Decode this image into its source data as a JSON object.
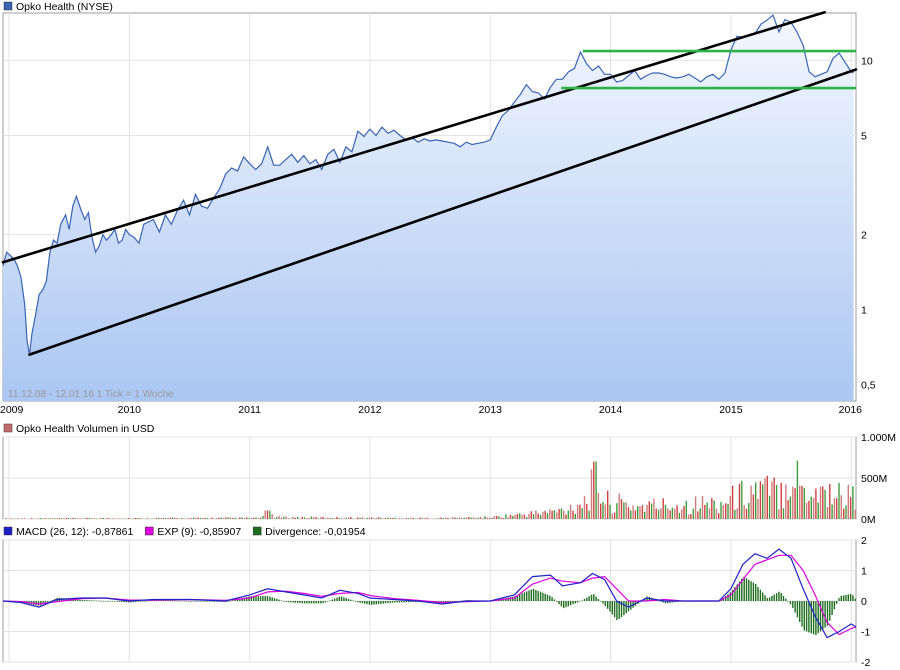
{
  "chart_data": [
    {
      "type": "area",
      "legend": "Opko Health (NYSE)",
      "legend_color": "#3a64b4",
      "note": "11.12.08 - 12.01.16   1 Tick = 1 Woche",
      "scale": "log",
      "ylim": [
        0.43,
        15.5
      ],
      "xlim": [
        2008.95,
        2016.04
      ],
      "yticks": [
        {
          "v": 0.5,
          "label": "0,5"
        },
        {
          "v": 1,
          "label": "1"
        },
        {
          "v": 2,
          "label": "2"
        },
        {
          "v": 5,
          "label": "5"
        },
        {
          "v": 10,
          "label": "10"
        }
      ],
      "xticks": [
        {
          "v": 2009,
          "label": "2009"
        },
        {
          "v": 2010,
          "label": "2010"
        },
        {
          "v": 2011,
          "label": "2011"
        },
        {
          "v": 2012,
          "label": "2012"
        },
        {
          "v": 2013,
          "label": "2013"
        },
        {
          "v": 2014,
          "label": "2014"
        },
        {
          "v": 2015,
          "label": "2015"
        },
        {
          "v": 2016,
          "label": "2016"
        }
      ],
      "series": [
        {
          "x": [
            2008.95,
            2008.98,
            2009.01,
            2009.04,
            2009.07,
            2009.1,
            2009.13,
            2009.15,
            2009.17,
            2009.19,
            2009.22,
            2009.25,
            2009.28,
            2009.31,
            2009.34,
            2009.37,
            2009.4,
            2009.43,
            2009.47,
            2009.5,
            2009.53,
            2009.56,
            2009.6,
            2009.63,
            2009.66,
            2009.69,
            2009.72,
            2009.75,
            2009.78,
            2009.81,
            2009.85,
            2009.88,
            2009.91,
            2009.94,
            2009.97,
            2010.0,
            2010.04,
            2010.08,
            2010.12,
            2010.16,
            2010.2,
            2010.25,
            2010.3,
            2010.35,
            2010.4,
            2010.45,
            2010.5,
            2010.55,
            2010.6,
            2010.65,
            2010.7,
            2010.75,
            2010.8,
            2010.85,
            2010.9,
            2010.95,
            2011.0,
            2011.05,
            2011.1,
            2011.15,
            2011.2,
            2011.25,
            2011.3,
            2011.35,
            2011.4,
            2011.45,
            2011.5,
            2011.55,
            2011.6,
            2011.65,
            2011.7,
            2011.75,
            2011.8,
            2011.85,
            2011.9,
            2011.95,
            2012.0,
            2012.05,
            2012.1,
            2012.15,
            2012.2,
            2012.25,
            2012.3,
            2012.35,
            2012.4,
            2012.45,
            2012.5,
            2012.55,
            2012.6,
            2012.65,
            2012.7,
            2012.75,
            2012.8,
            2012.85,
            2012.9,
            2012.95,
            2013.0,
            2013.05,
            2013.1,
            2013.15,
            2013.2,
            2013.25,
            2013.3,
            2013.35,
            2013.4,
            2013.45,
            2013.5,
            2013.55,
            2013.6,
            2013.65,
            2013.7,
            2013.75,
            2013.8,
            2013.85,
            2013.9,
            2013.95,
            2014.0,
            2014.05,
            2014.1,
            2014.15,
            2014.2,
            2014.25,
            2014.3,
            2014.35,
            2014.4,
            2014.45,
            2014.5,
            2014.55,
            2014.6,
            2014.65,
            2014.7,
            2014.75,
            2014.8,
            2014.85,
            2014.9,
            2014.95,
            2015.0,
            2015.05,
            2015.1,
            2015.15,
            2015.2,
            2015.25,
            2015.3,
            2015.35,
            2015.4,
            2015.45,
            2015.5,
            2015.55,
            2015.6,
            2015.65,
            2015.7,
            2015.75,
            2015.8,
            2015.85,
            2015.9,
            2015.95,
            2016.0,
            2016.02
          ],
          "y": [
            1.5,
            1.7,
            1.65,
            1.6,
            1.5,
            1.35,
            1.05,
            0.75,
            0.66,
            0.8,
            0.95,
            1.15,
            1.2,
            1.3,
            1.7,
            1.9,
            1.85,
            2.2,
            2.4,
            2.1,
            2.6,
            2.85,
            2.5,
            2.3,
            2.45,
            1.95,
            1.7,
            1.8,
            2.0,
            1.9,
            2.0,
            2.1,
            1.85,
            1.9,
            2.1,
            2.0,
            1.95,
            1.85,
            2.2,
            2.25,
            2.3,
            2.05,
            2.4,
            2.2,
            2.5,
            2.75,
            2.4,
            2.9,
            2.6,
            2.55,
            2.8,
            3.05,
            3.5,
            3.7,
            3.6,
            4.1,
            3.85,
            3.65,
            3.85,
            4.5,
            3.8,
            3.8,
            4.0,
            4.2,
            3.9,
            4.15,
            3.85,
            4.0,
            3.65,
            4.2,
            4.4,
            3.9,
            4.5,
            4.3,
            5.2,
            4.95,
            5.3,
            5.0,
            5.4,
            5.1,
            5.25,
            5.0,
            4.8,
            4.9,
            4.7,
            4.85,
            4.75,
            4.8,
            4.75,
            4.7,
            4.65,
            4.5,
            4.7,
            4.6,
            4.65,
            4.7,
            4.8,
            5.4,
            6.0,
            6.3,
            6.8,
            7.3,
            8.0,
            7.5,
            7.4,
            7.0,
            7.8,
            8.4,
            8.4,
            9.0,
            9.3,
            10.8,
            9.7,
            9.1,
            9.5,
            8.8,
            8.8,
            8.2,
            8.3,
            8.7,
            9.1,
            8.4,
            8.7,
            8.9,
            8.9,
            8.8,
            8.6,
            8.5,
            8.6,
            8.8,
            8.5,
            8.2,
            8.6,
            8.8,
            8.4,
            8.9,
            11.0,
            12.5,
            12.4,
            12.6,
            12.8,
            14.0,
            14.5,
            15.2,
            13.0,
            14.6,
            14.2,
            13.0,
            11.5,
            9.0,
            8.6,
            8.8,
            9.0,
            10.2,
            10.7,
            9.8,
            9.0,
            8.9
          ]
        }
      ],
      "channels": [
        {
          "name": "upper-trend-line",
          "x": [
            2008.95,
            2015.78
          ],
          "y": [
            1.55,
            15.6
          ]
        },
        {
          "name": "lower-trend-line",
          "x": [
            2009.17,
            2016.04
          ],
          "y": [
            0.66,
            9.2
          ]
        }
      ],
      "levels": [
        {
          "name": "resistance-line",
          "x": [
            2013.77,
            2016.04
          ],
          "y": 10.9
        },
        {
          "name": "support-line",
          "x": [
            2013.59,
            2016.04
          ],
          "y": 7.75
        }
      ]
    },
    {
      "type": "bar",
      "legend": "Opko Health Volumen in USD",
      "legend_color": "#c46a6a",
      "ylim": [
        0,
        1000
      ],
      "yticks": [
        {
          "v": 0,
          "label": "0M"
        },
        {
          "v": 500,
          "label": "500M"
        },
        {
          "v": 1000,
          "label": "1.000M"
        }
      ],
      "anchors_x": [
        2008.95,
        2011.1,
        2011.15,
        2011.2,
        2012.5,
        2013.0,
        2013.3,
        2013.6,
        2013.8,
        2013.87,
        2013.95,
        2014.2,
        2014.5,
        2014.9,
        2015.05,
        2015.2,
        2015.4,
        2015.5,
        2015.6,
        2015.8,
        2016.04
      ],
      "anchors_y": [
        8,
        15,
        140,
        25,
        12,
        25,
        70,
        120,
        280,
        560,
        250,
        180,
        200,
        220,
        320,
        420,
        380,
        690,
        420,
        380,
        300
      ]
    },
    {
      "type": "line",
      "legend": [
        {
          "label": "MACD (26, 12): -0,87861",
          "color": "#2020c8"
        },
        {
          "label": "EXP (9): -0,85907",
          "color": "#e000e0"
        },
        {
          "label": "Divergence: -0,01954",
          "color": "#1e6e1e"
        }
      ],
      "ylim": [
        -2,
        2
      ],
      "yticks": [
        {
          "v": 2,
          "label": "2"
        },
        {
          "v": 1,
          "label": "1"
        },
        {
          "v": 0,
          "label": "0"
        },
        {
          "v": -1,
          "label": "-1"
        },
        {
          "v": -2,
          "label": "-2"
        }
      ],
      "macd_x": [
        2008.95,
        2009.1,
        2009.25,
        2009.4,
        2009.6,
        2009.8,
        2010.0,
        2010.2,
        2010.5,
        2010.8,
        2011.0,
        2011.15,
        2011.3,
        2011.45,
        2011.6,
        2011.75,
        2011.9,
        2012.0,
        2012.2,
        2012.4,
        2012.6,
        2012.8,
        2013.0,
        2013.2,
        2013.35,
        2013.5,
        2013.6,
        2013.75,
        2013.85,
        2013.95,
        2014.05,
        2014.15,
        2014.3,
        2014.45,
        2014.6,
        2014.75,
        2014.9,
        2015.0,
        2015.1,
        2015.2,
        2015.3,
        2015.4,
        2015.5,
        2015.6,
        2015.7,
        2015.8,
        2015.9,
        2016.0,
        2016.04
      ],
      "macd_y": [
        0,
        -0.05,
        -0.2,
        0.05,
        0.1,
        0.1,
        0,
        0.05,
        0.05,
        0,
        0.2,
        0.4,
        0.3,
        0.2,
        0.1,
        0.35,
        0.25,
        0.1,
        0.05,
        0,
        -0.1,
        0,
        0,
        0.2,
        0.8,
        0.85,
        0.5,
        0.6,
        0.9,
        0.7,
        0,
        -0.2,
        0.1,
        0,
        0,
        0,
        0,
        0.4,
        1.2,
        1.55,
        1.4,
        1.7,
        1.4,
        0.4,
        -0.5,
        -1.2,
        -1.0,
        -0.75,
        -0.85
      ],
      "exp_x": [
        2008.95,
        2009.1,
        2009.25,
        2009.4,
        2009.6,
        2009.8,
        2010.0,
        2010.2,
        2010.5,
        2010.8,
        2011.0,
        2011.15,
        2011.3,
        2011.45,
        2011.6,
        2011.75,
        2011.9,
        2012.0,
        2012.2,
        2012.4,
        2012.6,
        2012.8,
        2013.0,
        2013.2,
        2013.35,
        2013.5,
        2013.6,
        2013.75,
        2013.85,
        2013.95,
        2014.05,
        2014.15,
        2014.3,
        2014.45,
        2014.6,
        2014.75,
        2014.9,
        2015.0,
        2015.1,
        2015.2,
        2015.3,
        2015.4,
        2015.5,
        2015.6,
        2015.7,
        2015.8,
        2015.9,
        2016.0,
        2016.04
      ],
      "exp_y": [
        0,
        -0.02,
        -0.1,
        -0.02,
        0.08,
        0.1,
        0.03,
        0.03,
        0.05,
        0.02,
        0.1,
        0.3,
        0.32,
        0.25,
        0.15,
        0.25,
        0.28,
        0.18,
        0.08,
        0.02,
        -0.05,
        -0.02,
        0,
        0.1,
        0.55,
        0.75,
        0.65,
        0.6,
        0.75,
        0.8,
        0.4,
        0,
        0,
        0.05,
        0,
        0,
        0,
        0.2,
        0.7,
        1.2,
        1.35,
        1.5,
        1.5,
        1.0,
        0.2,
        -0.7,
        -1.1,
        -0.9,
        -0.85
      ]
    }
  ]
}
